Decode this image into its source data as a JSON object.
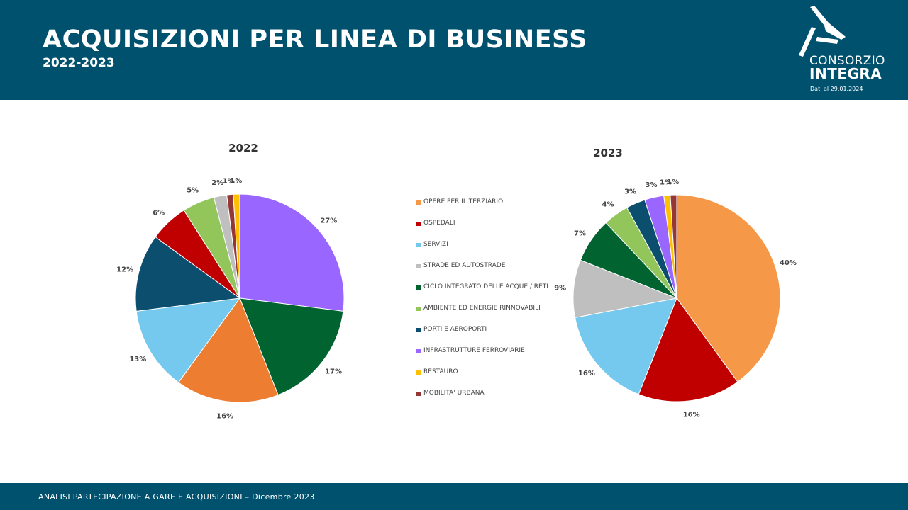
{
  "header": {
    "title": "ACQUISIZIONI PER LINEA DI BUSINESS",
    "subtitle": "2022-2023",
    "logo_line1": "CONSORZIO",
    "logo_line2": "INTEGRA",
    "date_note": "Dati al 29.01.2024"
  },
  "footer": {
    "text": "ANALISI PARTECIPAZIONE A GARE E ACQUISIZIONI – Dicembre 2023"
  },
  "colors": {
    "header_bg": "#00516e",
    "white": "#ffffff"
  },
  "legend": [
    {
      "label": "OPERE PER IL TERZIARIO",
      "color": "#f59847"
    },
    {
      "label": "OSPEDALI",
      "color": "#c00000"
    },
    {
      "label": "SERVIZI",
      "color": "#75c9ee"
    },
    {
      "label": "STRADE ED AUTOSTRADE",
      "color": "#bfbfbf"
    },
    {
      "label": "CICLO INTEGRATO DELLE ACQUE / RETI",
      "color": "#006330"
    },
    {
      "label": "AMBIENTE ED ENERGIE RINNOVABILI",
      "color": "#92c65a"
    },
    {
      "label": "PORTI E AEROPORTI",
      "color": "#0b4e6e"
    },
    {
      "label": "INFRASTRUTTURE FERROVIARIE",
      "color": "#9966ff"
    },
    {
      "label": "RESTAURO",
      "color": "#ffc000"
    },
    {
      "label": "MOBILITA' URBANA",
      "color": "#953735"
    }
  ],
  "chart_data": [
    {
      "type": "pie",
      "title": "2022",
      "slices": [
        {
          "label": "",
          "value": 27,
          "display": "27%",
          "color": "#9966ff"
        },
        {
          "label": "",
          "value": 17,
          "display": "17%",
          "color": "#006330"
        },
        {
          "label": "",
          "value": 16,
          "display": "16%",
          "color": "#ed7d31"
        },
        {
          "label": "",
          "value": 13,
          "display": "13%",
          "color": "#75c9ee"
        },
        {
          "label": "",
          "value": 12,
          "display": "12%",
          "color": "#0b4e6e"
        },
        {
          "label": "",
          "value": 6,
          "display": "6%",
          "color": "#c00000"
        },
        {
          "label": "",
          "value": 5,
          "display": "5%",
          "color": "#92c65a"
        },
        {
          "label": "",
          "value": 2,
          "display": "2%",
          "color": "#bfbfbf"
        },
        {
          "label": "",
          "value": 1,
          "display": "1%",
          "color": "#953735"
        },
        {
          "label": "",
          "value": 1,
          "display": "1%",
          "color": "#ffc000"
        }
      ]
    },
    {
      "type": "pie",
      "title": "2023",
      "slices": [
        {
          "label": "OPERE PER IL TERZIARIO",
          "value": 40,
          "display": "40%",
          "color": "#f59847"
        },
        {
          "label": "OSPEDALI",
          "value": 16,
          "display": "16%",
          "color": "#c00000"
        },
        {
          "label": "SERVIZI",
          "value": 16,
          "display": "16%",
          "color": "#75c9ee"
        },
        {
          "label": "STRADE ED AUTOSTRADE",
          "value": 9,
          "display": "9%",
          "color": "#bfbfbf"
        },
        {
          "label": "CICLO INTEGRATO DELLE ACQUE / RETI",
          "value": 7,
          "display": "7%",
          "color": "#006330"
        },
        {
          "label": "AMBIENTE ED ENERGIE RINNOVABILI",
          "value": 4,
          "display": "4%",
          "color": "#92c65a"
        },
        {
          "label": "PORTI E AEROPORTI",
          "value": 3,
          "display": "3%",
          "color": "#0b4e6e"
        },
        {
          "label": "INFRASTRUTTURE FERROVIARIE",
          "value": 3,
          "display": "3%",
          "color": "#9966ff"
        },
        {
          "label": "RESTAURO",
          "value": 1,
          "display": "1%",
          "color": "#ffc000"
        },
        {
          "label": "MOBILITA' URBANA",
          "value": 1,
          "display": "1%",
          "color": "#953735"
        }
      ]
    }
  ]
}
